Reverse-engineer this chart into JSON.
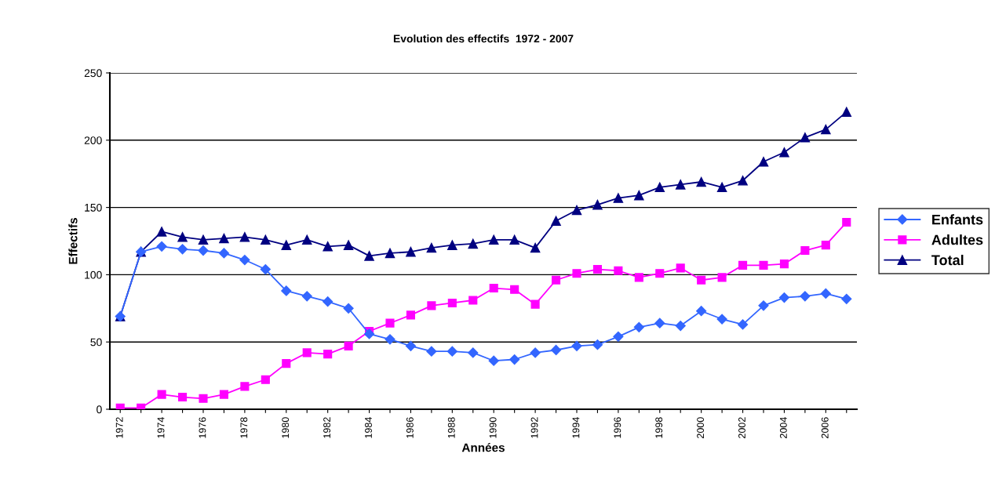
{
  "chart_data": {
    "type": "line",
    "title": "Evolution des effectifs  1972 - 2007",
    "xlabel": "Années",
    "ylabel": "Effectifs",
    "categories": [
      "1972",
      null,
      "1974",
      null,
      "1976",
      null,
      "1978",
      null,
      "1980",
      null,
      "1982",
      null,
      "1984",
      null,
      "1986",
      null,
      "1988",
      null,
      "1990",
      null,
      "1992",
      null,
      "1994",
      null,
      "1996",
      null,
      "1998",
      null,
      "2000",
      null,
      "2002",
      null,
      "2004",
      null,
      "2006",
      null
    ],
    "series": [
      {
        "name": "Enfants",
        "color": "#3366ff",
        "marker": "diamond",
        "values": [
          69,
          117,
          121,
          119,
          118,
          116,
          111,
          104,
          88,
          84,
          80,
          75,
          56,
          52,
          47,
          43,
          43,
          42,
          36,
          37,
          42,
          44,
          47,
          48,
          54,
          61,
          64,
          62,
          73,
          67,
          63,
          77,
          83,
          84,
          86,
          82
        ]
      },
      {
        "name": "Adultes",
        "color": "#ff00ff",
        "marker": "square",
        "values": [
          1,
          1,
          11,
          9,
          8,
          11,
          17,
          22,
          34,
          42,
          41,
          47,
          58,
          64,
          70,
          77,
          79,
          81,
          90,
          89,
          78,
          96,
          101,
          104,
          103,
          98,
          101,
          105,
          96,
          98,
          107,
          107,
          108,
          118,
          122,
          139
        ]
      },
      {
        "name": "Total",
        "color": "#000080",
        "marker": "triangle",
        "values": [
          69,
          117,
          132,
          128,
          126,
          127,
          128,
          126,
          122,
          126,
          121,
          122,
          114,
          116,
          117,
          120,
          122,
          123,
          126,
          126,
          120,
          140,
          148,
          152,
          157,
          159,
          165,
          167,
          169,
          165,
          170,
          184,
          191,
          202,
          208,
          221
        ]
      }
    ],
    "ylim": [
      0,
      250
    ],
    "yticks": [
      0,
      50,
      100,
      150,
      200,
      250
    ],
    "grid": "y",
    "legend": "right",
    "line_style": "solid"
  }
}
